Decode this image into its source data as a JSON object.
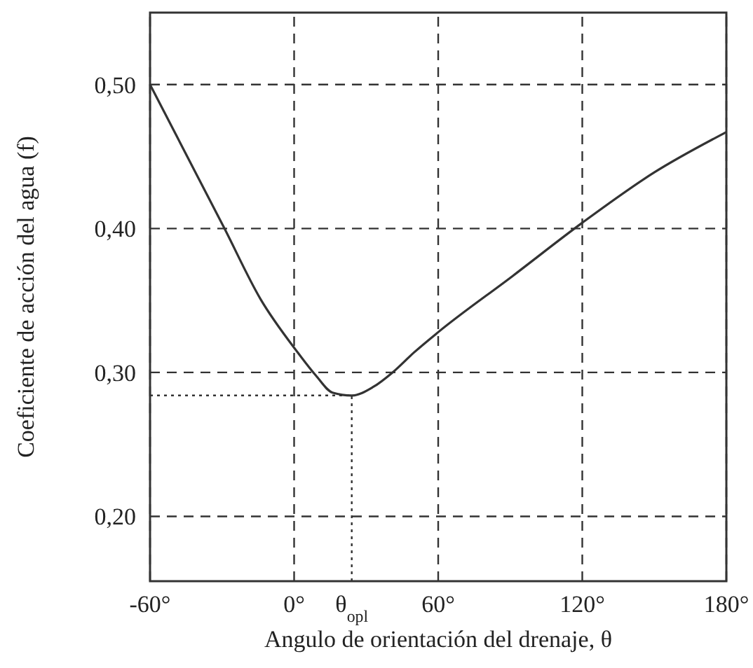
{
  "chart_data": {
    "type": "line",
    "xlabel": "Angulo de orientación del drenaje, θ",
    "ylabel": "Coeficiente de acción del agua (f)",
    "x": [
      -60,
      -29,
      -14,
      1,
      9,
      16,
      24,
      33,
      41,
      50,
      60,
      91,
      120,
      150,
      180
    ],
    "series": [
      {
        "color": "#333333",
        "values": [
          0.5,
          0.4,
          0.351,
          0.315,
          0.298,
          0.286,
          0.284,
          0.29,
          0.3,
          0.314,
          0.328,
          0.367,
          0.404,
          0.439,
          0.467
        ]
      }
    ],
    "xlim": [
      -60,
      180
    ],
    "xticks": [
      {
        "value": -60,
        "label": "-60°"
      },
      {
        "value": 0,
        "label": "0°"
      },
      {
        "value": 24,
        "label": "θ$_{opl}$"
      },
      {
        "value": 60,
        "label": "60°"
      },
      {
        "value": 120,
        "label": "120°"
      },
      {
        "value": 180,
        "label": "180°"
      }
    ],
    "ylim": [
      0.155,
      0.55
    ],
    "yticks": [
      {
        "value": 0.2,
        "label": "0,20"
      },
      {
        "value": 0.3,
        "label": "0,30"
      },
      {
        "value": 0.4,
        "label": "0,40"
      },
      {
        "value": 0.5,
        "label": "0,50"
      }
    ],
    "grid": true,
    "line_style": "solid",
    "marker": "none",
    "ref_lines": [
      {
        "axis": "x",
        "value": 24,
        "line_style": "dotted"
      },
      {
        "axis": "y",
        "value": 0.284,
        "line_style": "dotted"
      }
    ]
  }
}
